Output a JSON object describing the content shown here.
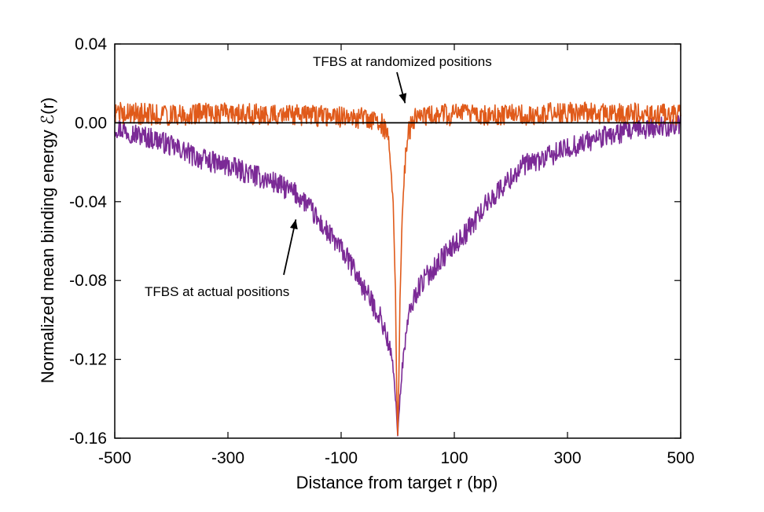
{
  "chart_data": {
    "type": "line",
    "title": "",
    "xlabel": "Distance from target r (bp)",
    "ylabel": "Normalized mean binding energy ℰ(r)",
    "xlim": [
      -500,
      500
    ],
    "ylim": [
      -0.16,
      0.04
    ],
    "xticks": [
      -500,
      -300,
      -100,
      100,
      300,
      500
    ],
    "xtick_labels": [
      "-500",
      "-300",
      "-100",
      "100",
      "300",
      "500"
    ],
    "yticks": [
      0.04,
      0.0,
      -0.04,
      -0.08,
      -0.12,
      -0.16
    ],
    "ytick_labels": [
      "0.04",
      "0.00",
      "-0.04",
      "-0.08",
      "-0.12",
      "-0.16"
    ],
    "grid": false,
    "reference_line_y": 0,
    "colors": {
      "actual": "#7b2a96",
      "randomized": "#e05a1a",
      "zero_line": "#000000"
    },
    "series": [
      {
        "name": "TFBS at actual positions",
        "x": [
          -500,
          -460,
          -420,
          -400,
          -380,
          -360,
          -340,
          -300,
          -260,
          -220,
          -200,
          -180,
          -160,
          -140,
          -120,
          -100,
          -80,
          -60,
          -40,
          -30,
          -20,
          -12,
          -6,
          -2,
          0,
          2,
          6,
          10,
          14,
          20,
          30,
          40,
          60,
          80,
          100,
          120,
          140,
          160,
          180,
          200,
          220,
          260,
          300,
          340,
          380,
          420,
          460,
          500
        ],
        "y": [
          -0.002,
          -0.006,
          -0.009,
          -0.012,
          -0.014,
          -0.017,
          -0.019,
          -0.022,
          -0.026,
          -0.03,
          -0.033,
          -0.036,
          -0.041,
          -0.05,
          -0.057,
          -0.064,
          -0.073,
          -0.084,
          -0.094,
          -0.099,
          -0.108,
          -0.118,
          -0.13,
          -0.148,
          -0.158,
          -0.148,
          -0.132,
          -0.12,
          -0.108,
          -0.098,
          -0.088,
          -0.082,
          -0.075,
          -0.068,
          -0.062,
          -0.056,
          -0.048,
          -0.04,
          -0.034,
          -0.028,
          -0.022,
          -0.018,
          -0.013,
          -0.009,
          -0.006,
          -0.004,
          -0.002,
          -0.001
        ]
      },
      {
        "name": "TFBS at randomized positions",
        "x": [
          -500,
          -400,
          -300,
          -200,
          -100,
          -50,
          -30,
          -20,
          -14,
          -8,
          -4,
          -2,
          0,
          2,
          4,
          8,
          14,
          20,
          30,
          50,
          100,
          200,
          300,
          400,
          500
        ],
        "y": [
          0.005,
          0.004,
          0.005,
          0.004,
          0.003,
          0.002,
          0.0,
          -0.004,
          -0.015,
          -0.04,
          -0.085,
          -0.13,
          -0.16,
          -0.13,
          -0.09,
          -0.045,
          -0.015,
          -0.004,
          0.002,
          0.004,
          0.004,
          0.004,
          0.005,
          0.005,
          0.004
        ]
      }
    ],
    "annotations": [
      {
        "text": "TFBS at randomized positions",
        "points_to_x": 13,
        "points_to_y": 0.01
      },
      {
        "text": "TFBS at actual positions",
        "points_to_x": -180,
        "points_to_y": -0.049
      }
    ]
  }
}
